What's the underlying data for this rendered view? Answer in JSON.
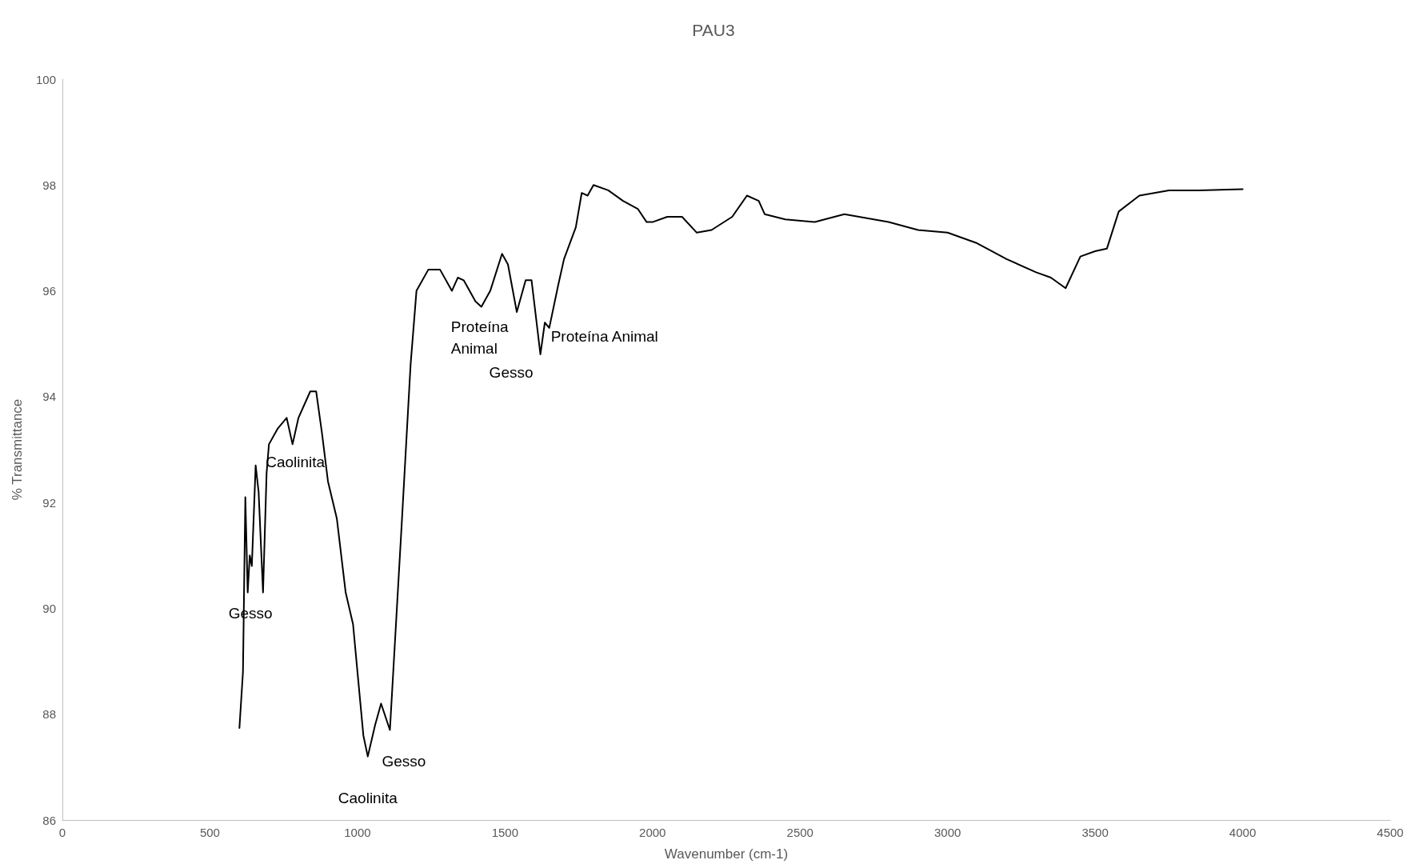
{
  "chart_data": {
    "type": "line",
    "title": "PAU3",
    "xlabel": "Wavenumber (cm-1)",
    "ylabel": "% Transmittance",
    "xlim": [
      0,
      4500
    ],
    "xticks": [
      0,
      500,
      1000,
      1500,
      2000,
      2500,
      3000,
      3500,
      4000,
      4500
    ],
    "ylim": [
      86,
      100
    ],
    "yticks": [
      86,
      88,
      90,
      92,
      94,
      96,
      98,
      100
    ],
    "grid": false,
    "marker": "none",
    "line_style": "solid",
    "series": [
      {
        "color": "#000000",
        "x": [
          600,
          612,
          620,
          628,
          635,
          642,
          655,
          665,
          680,
          692,
          700,
          730,
          760,
          780,
          800,
          840,
          860,
          880,
          900,
          930,
          960,
          985,
          1000,
          1020,
          1035,
          1060,
          1080,
          1110,
          1150,
          1180,
          1200,
          1240,
          1280,
          1320,
          1340,
          1360,
          1400,
          1420,
          1450,
          1490,
          1510,
          1540,
          1570,
          1590,
          1620,
          1635,
          1650,
          1680,
          1700,
          1740,
          1760,
          1780,
          1800,
          1850,
          1900,
          1950,
          1980,
          2000,
          2050,
          2100,
          2150,
          2200,
          2270,
          2320,
          2360,
          2380,
          2450,
          2550,
          2650,
          2800,
          2900,
          3000,
          3100,
          3200,
          3300,
          3350,
          3400,
          3450,
          3500,
          3540,
          3580,
          3650,
          3750,
          3850,
          4000
        ],
        "values": [
          87.74,
          88.8,
          92.1,
          90.3,
          91.0,
          90.8,
          92.7,
          92.2,
          90.3,
          92.55,
          93.1,
          93.4,
          93.6,
          93.1,
          93.6,
          94.1,
          94.1,
          93.3,
          92.4,
          91.7,
          90.3,
          89.7,
          88.8,
          87.6,
          87.2,
          87.8,
          88.2,
          87.7,
          91.6,
          94.6,
          96.0,
          96.4,
          96.4,
          96.0,
          96.25,
          96.2,
          95.8,
          95.7,
          96.0,
          96.7,
          96.5,
          95.6,
          96.2,
          96.2,
          94.8,
          95.4,
          95.3,
          96.1,
          96.6,
          97.2,
          97.85,
          97.8,
          98.0,
          97.9,
          97.7,
          97.55,
          97.3,
          97.3,
          97.4,
          97.4,
          97.1,
          97.15,
          97.4,
          97.8,
          97.7,
          97.45,
          97.35,
          97.3,
          97.45,
          97.3,
          97.15,
          97.1,
          96.9,
          96.6,
          96.35,
          96.25,
          96.05,
          96.65,
          96.75,
          96.8,
          97.5,
          97.8,
          97.9,
          97.9,
          97.92
        ]
      }
    ],
    "annotations": [
      {
        "text": "Gesso",
        "x": 628,
        "y": 90.3
      },
      {
        "text": "Caolinita",
        "x": 700,
        "y": 93.1
      },
      {
        "text": "Caolinita",
        "x": 1035,
        "y": 87.2
      },
      {
        "text": "Gesso",
        "x": 1110,
        "y": 87.7
      },
      {
        "text": "Proteína\nAnimal",
        "x": 1420,
        "y": 95.7
      },
      {
        "text": "Gesso",
        "x": 1620,
        "y": 94.8
      },
      {
        "text": "Proteína Animal",
        "x": 1650,
        "y": 95.3
      }
    ]
  }
}
